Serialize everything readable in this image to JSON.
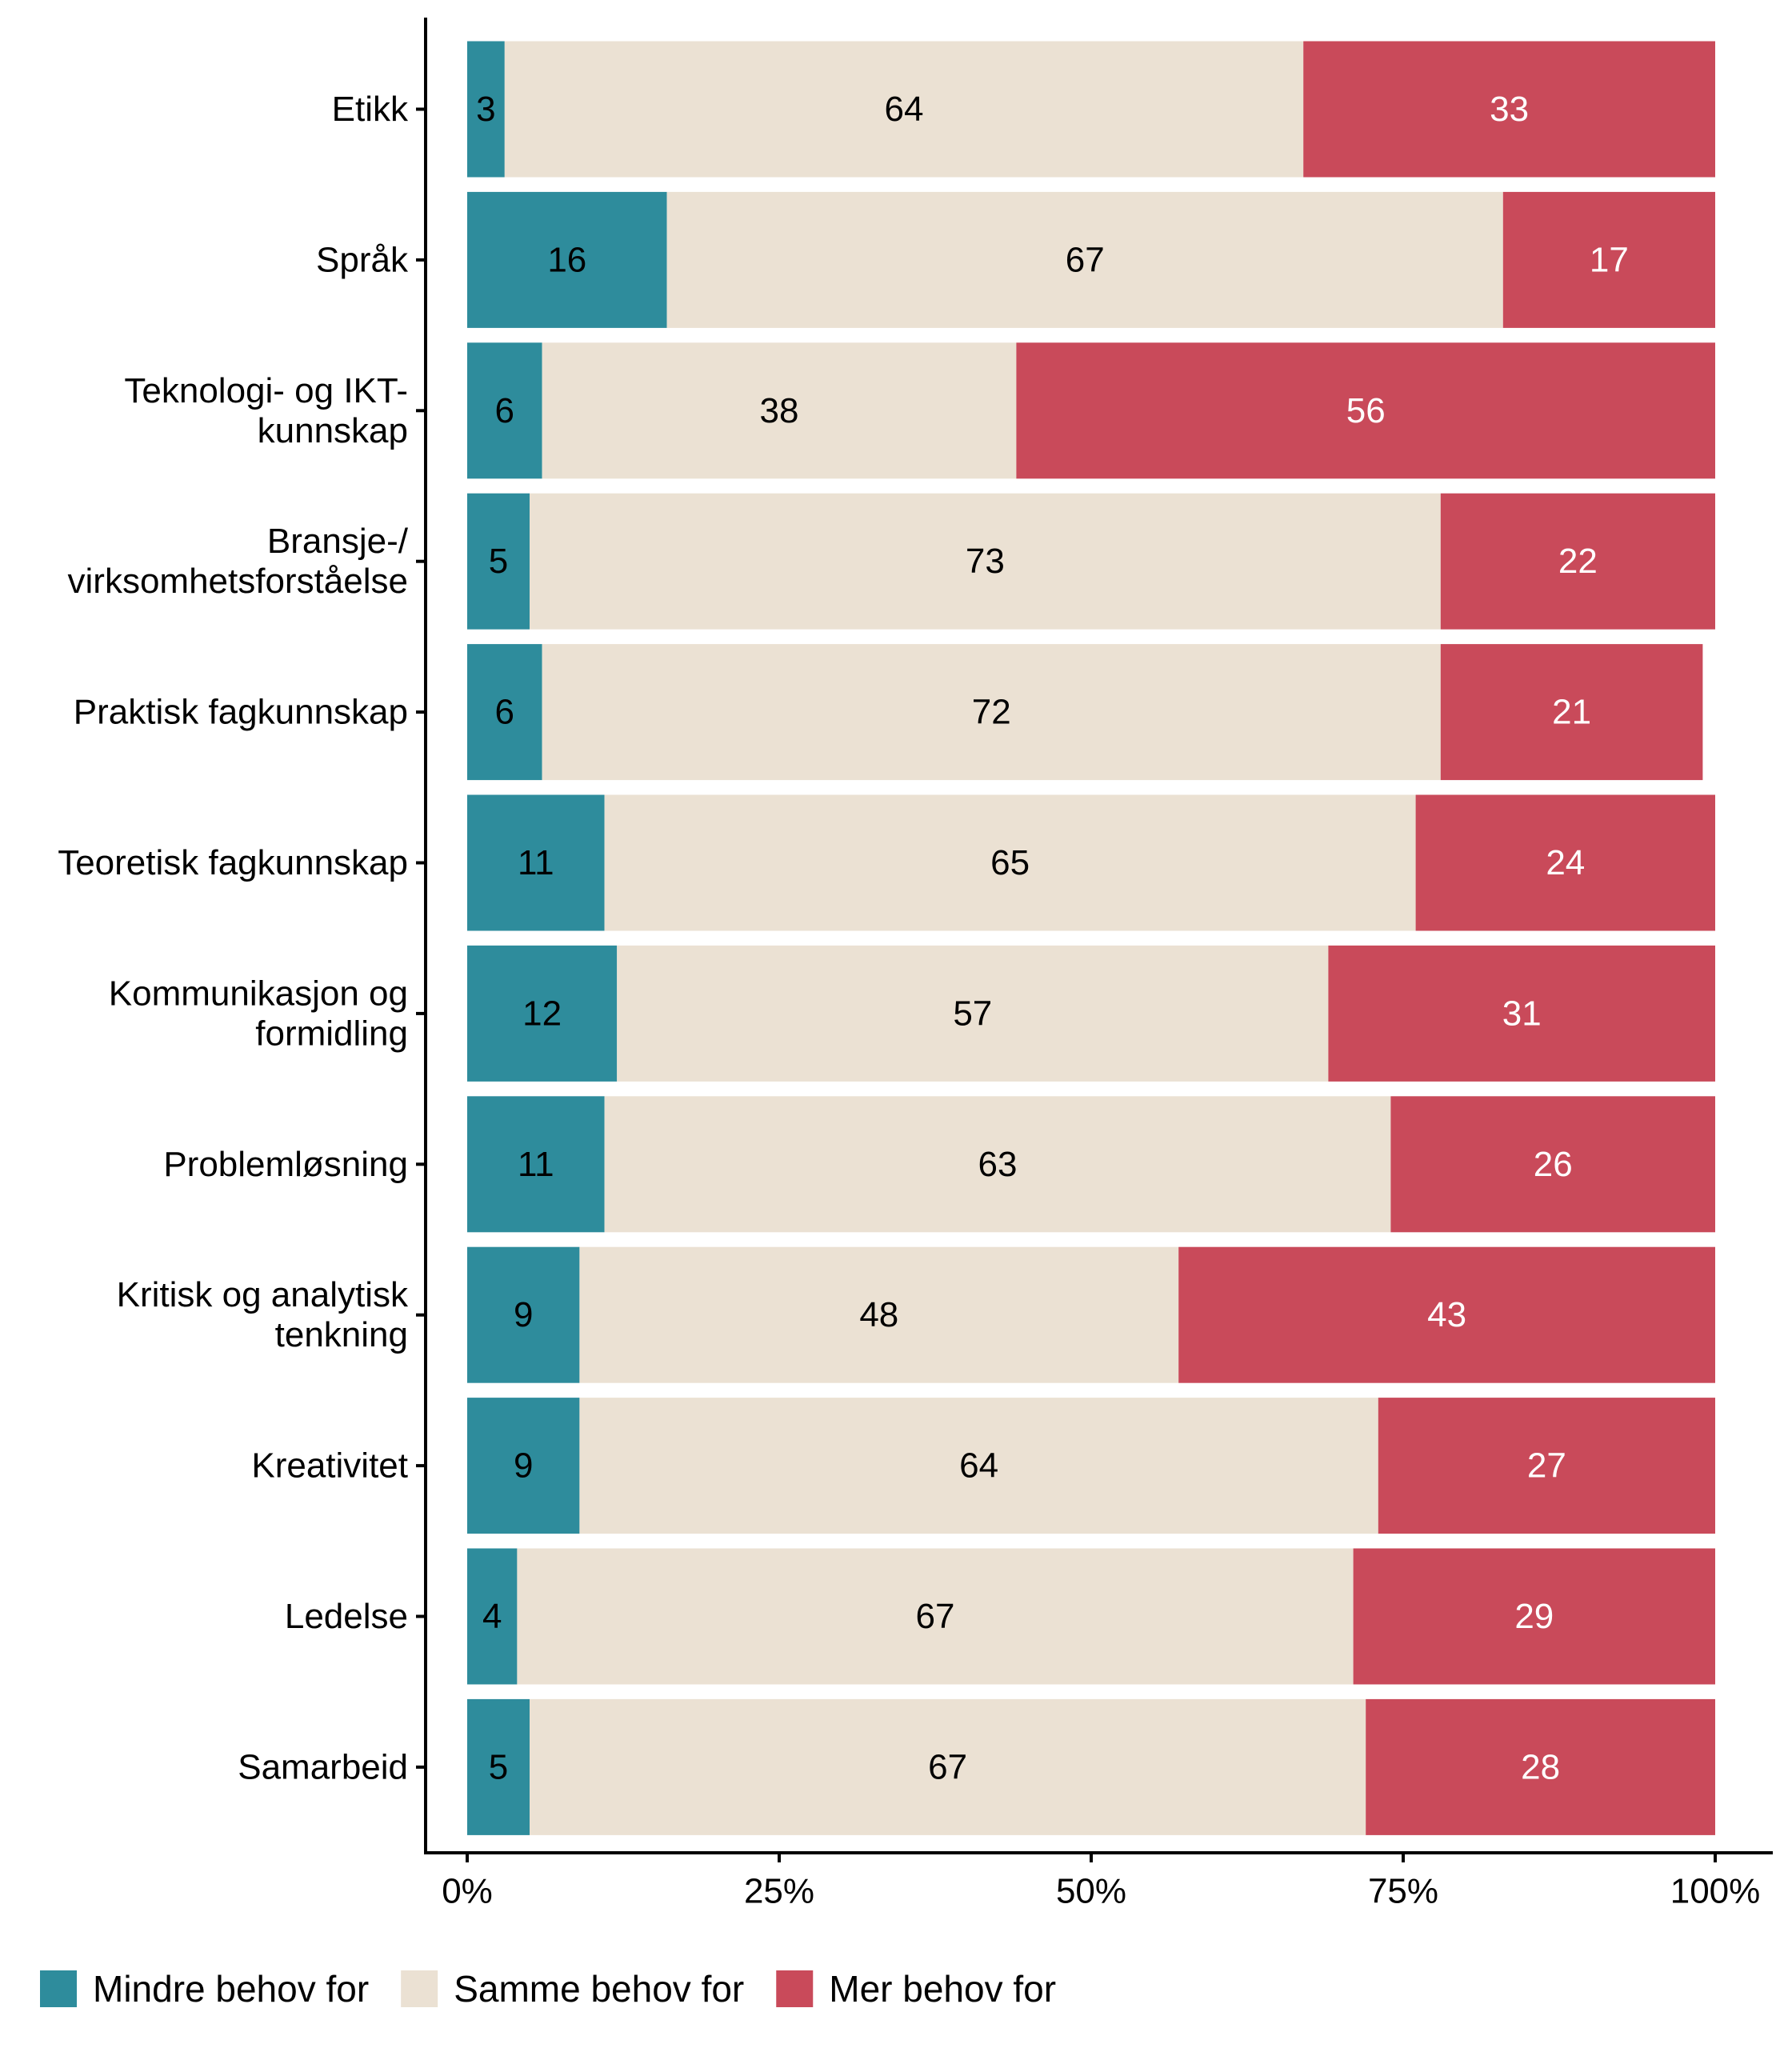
{
  "chart_data": {
    "type": "bar",
    "orientation": "horizontal",
    "stacked": true,
    "normalized": true,
    "categories": [
      [
        "Etikk"
      ],
      [
        "Språk"
      ],
      [
        "Teknologi- og IKT-",
        "kunnskap"
      ],
      [
        "Bransje-/",
        "virksomhetsforståelse"
      ],
      [
        "Praktisk fagkunnskap"
      ],
      [
        "Teoretisk fagkunnskap"
      ],
      [
        "Kommunikasjon og",
        "formidling"
      ],
      [
        "Problemløsning"
      ],
      [
        "Kritisk og analytisk",
        "tenkning"
      ],
      [
        "Kreativitet"
      ],
      [
        "Ledelse"
      ],
      [
        "Samarbeid"
      ]
    ],
    "series": [
      {
        "name": "Mindre behov for",
        "color": "#2E8C9C",
        "label_color": "#000000",
        "values": [
          3,
          16,
          6,
          5,
          6,
          11,
          12,
          11,
          9,
          9,
          4,
          5
        ]
      },
      {
        "name": "Samme behov for",
        "color": "#EBE1D3",
        "label_color": "#000000",
        "values": [
          64,
          67,
          38,
          73,
          72,
          65,
          57,
          63,
          48,
          64,
          67,
          67
        ]
      },
      {
        "name": "Mer behov for",
        "color": "#C94A5A",
        "label_color": "#FFFFFF",
        "values": [
          33,
          17,
          56,
          22,
          21,
          24,
          31,
          26,
          43,
          27,
          29,
          28
        ]
      }
    ],
    "x_ticks": [
      "0%",
      "25%",
      "50%",
      "75%",
      "100%"
    ],
    "xlim": [
      0,
      100
    ],
    "title": "",
    "xlabel": "",
    "ylabel": "",
    "legend_position": "bottom-left",
    "grid": false
  }
}
